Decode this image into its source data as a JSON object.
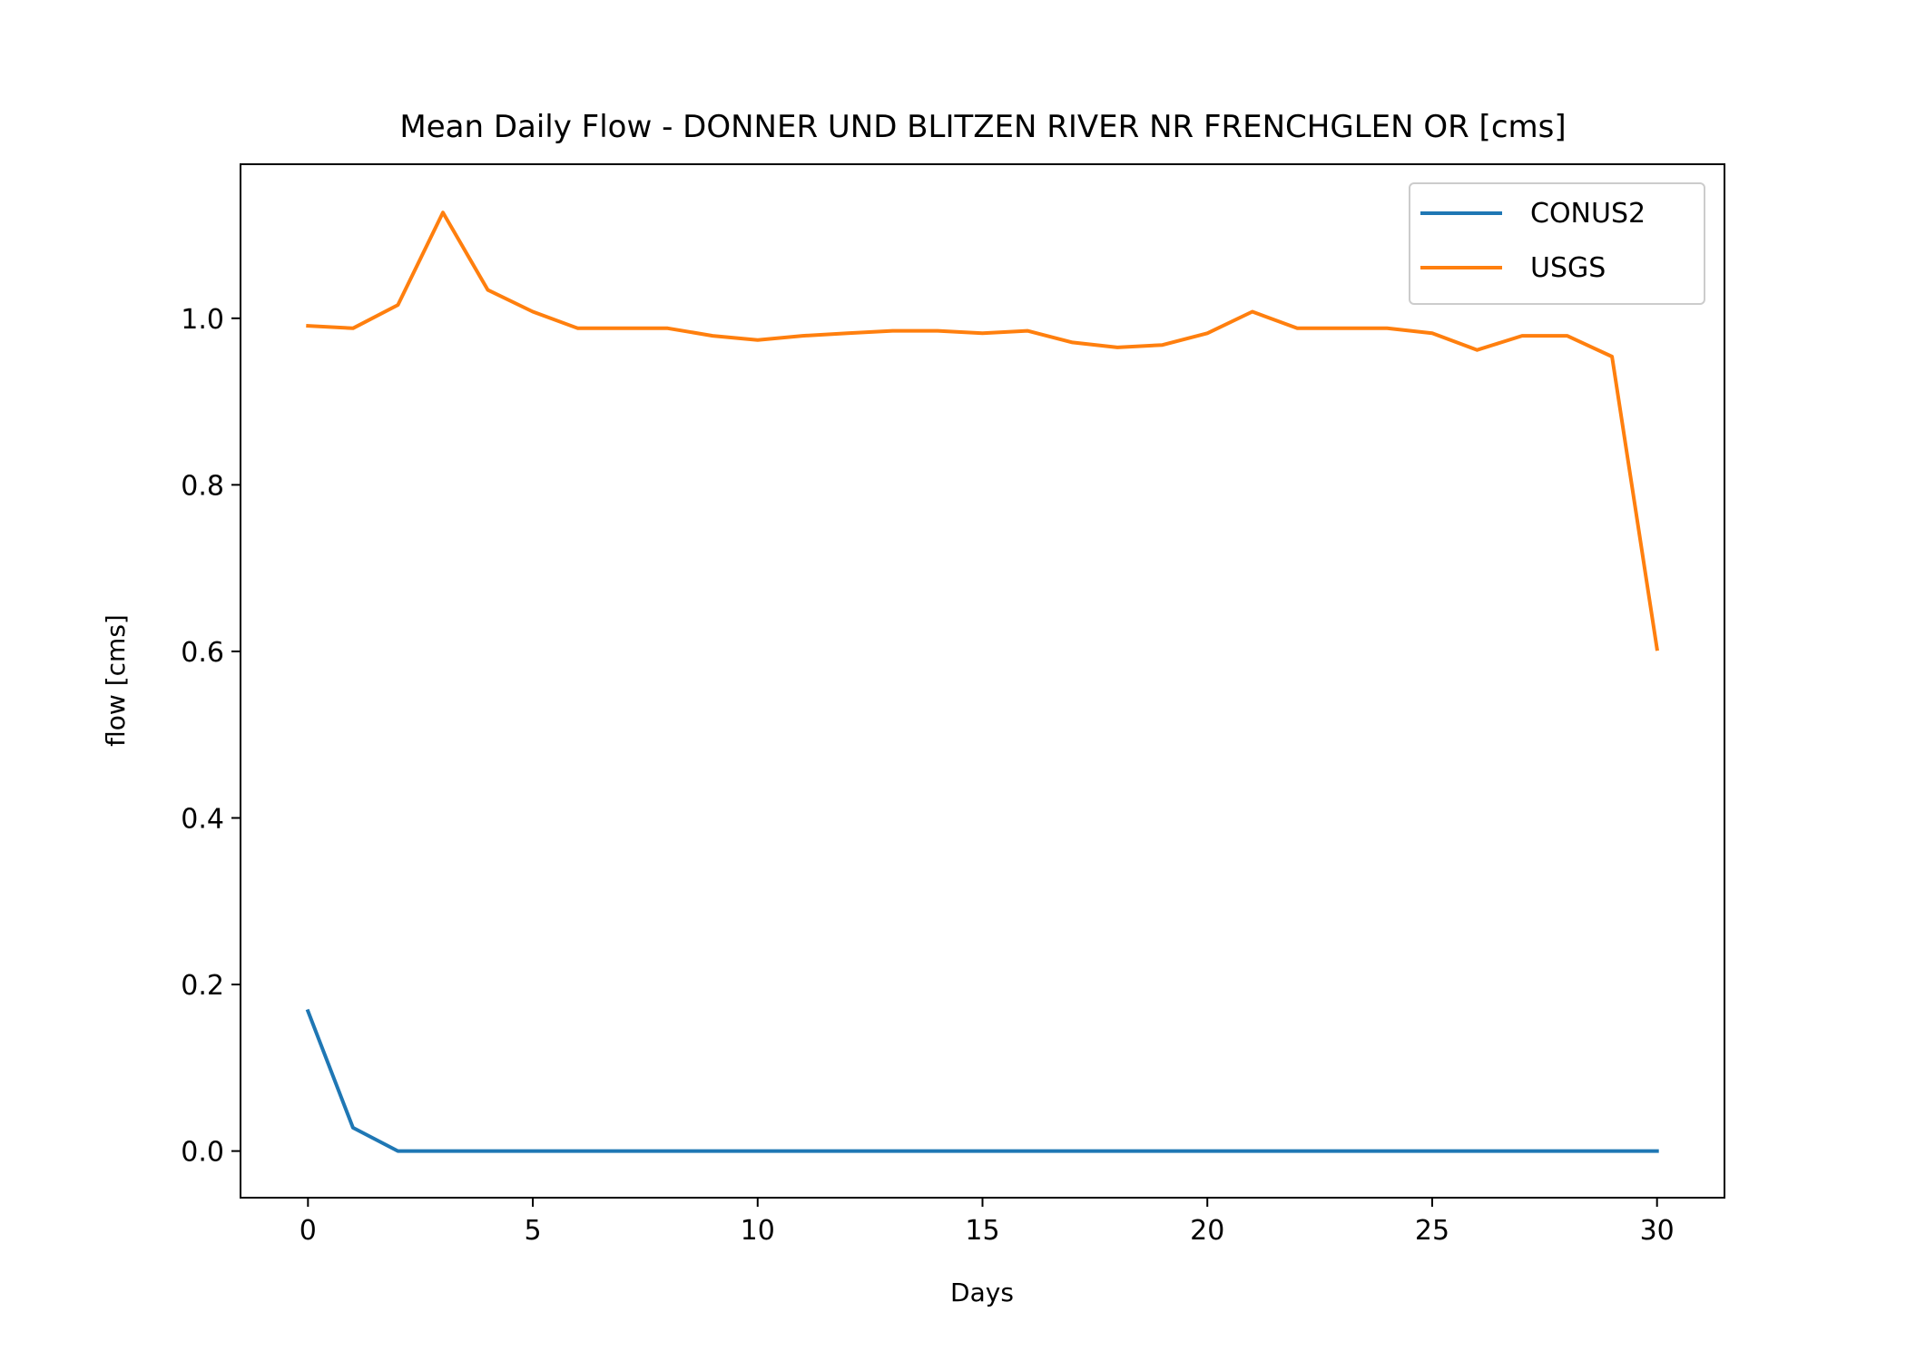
{
  "chart_data": {
    "type": "line",
    "title": "Mean Daily Flow - DONNER UND BLITZEN RIVER NR FRENCHGLEN OR [cms]",
    "xlabel": "Days",
    "ylabel": "flow [cms]",
    "xlim": [
      -1.5,
      31.5
    ],
    "ylim": [
      -0.056,
      1.185
    ],
    "xticks": [
      0,
      5,
      10,
      15,
      20,
      25,
      30
    ],
    "xtick_labels": [
      "0",
      "5",
      "10",
      "15",
      "20",
      "25",
      "30"
    ],
    "yticks": [
      0.0,
      0.2,
      0.4,
      0.6,
      0.8,
      1.0
    ],
    "ytick_labels": [
      "0.0",
      "0.2",
      "0.4",
      "0.6",
      "0.8",
      "1.0"
    ],
    "grid": false,
    "legend_position": "upper right",
    "x": [
      0,
      1,
      2,
      3,
      4,
      5,
      6,
      7,
      8,
      9,
      10,
      11,
      12,
      13,
      14,
      15,
      16,
      17,
      18,
      19,
      20,
      21,
      22,
      23,
      24,
      25,
      26,
      27,
      28,
      29,
      30
    ],
    "series": [
      {
        "name": "CONUS2",
        "color": "#1f77b4",
        "values": [
          0.168,
          0.028,
          0.0,
          0.0,
          0.0,
          0.0,
          0.0,
          0.0,
          0.0,
          0.0,
          0.0,
          0.0,
          0.0,
          0.0,
          0.0,
          0.0,
          0.0,
          0.0,
          0.0,
          0.0,
          0.0,
          0.0,
          0.0,
          0.0,
          0.0,
          0.0,
          0.0,
          0.0,
          0.0,
          0.0,
          0.0
        ]
      },
      {
        "name": "USGS",
        "color": "#ff7f0e",
        "values": [
          0.991,
          0.988,
          1.016,
          1.127,
          1.034,
          1.008,
          0.988,
          0.988,
          0.988,
          0.979,
          0.974,
          0.979,
          0.982,
          0.985,
          0.985,
          0.982,
          0.985,
          0.971,
          0.965,
          0.968,
          0.982,
          1.008,
          0.988,
          0.988,
          0.988,
          0.982,
          0.962,
          0.979,
          0.979,
          0.954,
          0.603
        ]
      }
    ]
  }
}
